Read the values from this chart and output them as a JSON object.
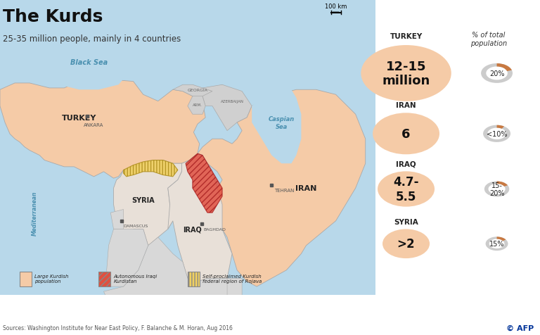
{
  "title": "The Kurds",
  "subtitle": "25-35 million people, mainly in 4 countries",
  "bg_color": "#ffffff",
  "map_ocean_color": "#b8d8ea",
  "map_land_color": "#d0d0d0",
  "map_kurdish_color": "#f5cba7",
  "map_kurdish_light_color": "#fde8d8",
  "map_rojava_color": "#e8c84a",
  "map_rojava_fill": "#f0d060",
  "map_kurdistan_color": "#c0392b",
  "map_kurdistan_fill": "#e05040",
  "countries": [
    {
      "name": "TURKEY",
      "pop": "12-15\nmillion",
      "pct": "20%",
      "pct_val": 20,
      "pop_fs": 13
    },
    {
      "name": "IRAN",
      "pop": "6",
      "pct": "<10%",
      "pct_val": 9,
      "pop_fs": 13
    },
    {
      "name": "IRAQ",
      "pop": "4.7-\n5.5",
      "pct": "15-\n20%",
      "pct_val": 17,
      "pop_fs": 12
    },
    {
      "name": "SYRIA",
      "pop": ">2",
      "pct": "15%",
      "pct_val": 15,
      "pop_fs": 12
    }
  ],
  "legend_items": [
    {
      "label": "Large Kurdish\npopulation",
      "color": "#f5cba7",
      "hatch": ""
    },
    {
      "label": "Autonomous Iraqi\nKurdistan",
      "color": "#e05040",
      "hatch": "////"
    },
    {
      "label": "Self-proclaimed Kurdish\nfederal region of Rojava",
      "color": "#f0d060",
      "hatch": "||||"
    }
  ],
  "source_text": "Sources: Washington Institute for Near East Policy, F. Balanche & M. Horan, Aug 2016",
  "donut_active_color": "#c87941",
  "donut_bg_color": "#cccccc",
  "circle_fill": "#f5cba7",
  "scale_bar_label": "100 km"
}
